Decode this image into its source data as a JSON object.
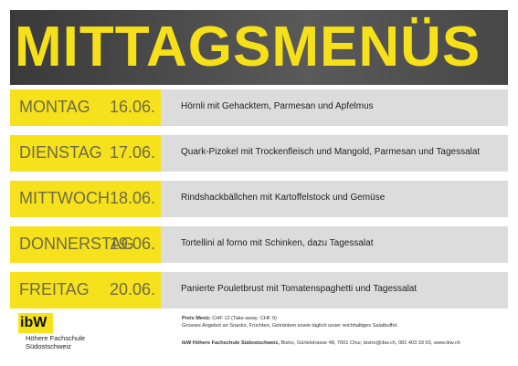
{
  "header": {
    "title": "MITTAGSMENÜS"
  },
  "menu": [
    {
      "day": "MONTAG",
      "date": "16.06.",
      "dish": "Hörnli mit Gehacktem, Parmesan und Apfelmus"
    },
    {
      "day": "DIENSTAG",
      "date": "17.06.",
      "dish": "Quark-Pizokel mit Trockenfleisch und Mangold, Parmesan und Tagessalat"
    },
    {
      "day": "MITTWOCH",
      "date": "18.06.",
      "dish": "Rindshackbällchen mit Kartoffelstock und Gemüse"
    },
    {
      "day": "DONNERSTAG",
      "date": "19.06.",
      "dish": "Tortellini al forno mit Schinken, dazu Tagessalat"
    },
    {
      "day": "FREITAG",
      "date": "20.06.",
      "dish": "Panierte Pouletbrust mit Tomatenspaghetti und Tagessalat"
    }
  ],
  "footer": {
    "logo": {
      "mark": "ibW",
      "text": "Höhere Fachschule Südostschweiz"
    },
    "price_label": "Preis Menü:",
    "price": "CHF 12 (Take-away: CHF 9)",
    "offer": "Grosses Angebot an Snacks, Früchten, Getränken sowie täglich unser reichhaltiges Salatbuffet.",
    "address_name": "ibW Höhere Fachschule Südostschweiz,",
    "address": " Bistro, Gürtelstrasse 48, 7001 Chur, bistro@ibw.ch, 081 403 33 93, www.ibw.ch"
  }
}
